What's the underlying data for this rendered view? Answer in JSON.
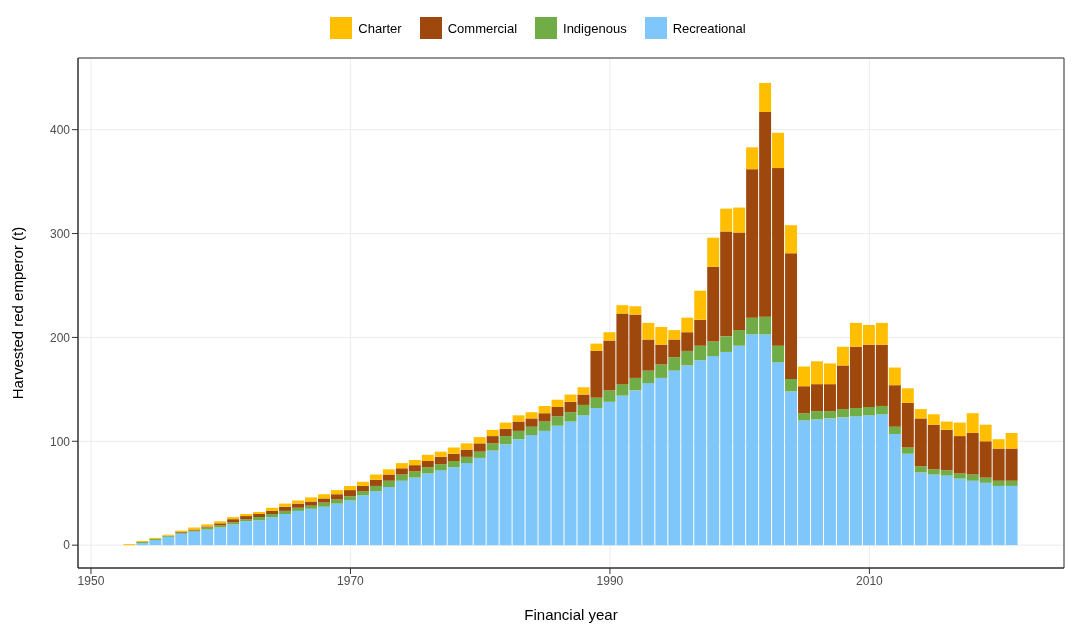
{
  "chart_data": {
    "type": "bar",
    "stacked": true,
    "xlabel": "Financial year",
    "ylabel": "Harvested red emperor (t)",
    "x": [
      1953,
      1954,
      1955,
      1956,
      1957,
      1958,
      1959,
      1960,
      1961,
      1962,
      1963,
      1964,
      1965,
      1966,
      1967,
      1968,
      1969,
      1970,
      1971,
      1972,
      1973,
      1974,
      1975,
      1976,
      1977,
      1978,
      1979,
      1980,
      1981,
      1982,
      1983,
      1984,
      1985,
      1986,
      1987,
      1988,
      1989,
      1990,
      1991,
      1992,
      1993,
      1994,
      1995,
      1996,
      1997,
      1998,
      1999,
      2000,
      2001,
      2002,
      2003,
      2004,
      2005,
      2006,
      2007,
      2008,
      2009,
      2010,
      2011,
      2012,
      2013,
      2014,
      2015,
      2016,
      2017,
      2018,
      2019,
      2020,
      2021
    ],
    "xlim": [
      1949,
      2025
    ],
    "xticks": [
      1950,
      1970,
      1990,
      2010
    ],
    "ylim": [
      -22,
      469
    ],
    "yticks": [
      0,
      100,
      200,
      300,
      400
    ],
    "grid": true,
    "legend": "top",
    "series": [
      {
        "name": "Recreational",
        "color": "#7fc7fa",
        "values": [
          0,
          2,
          5,
          8,
          11,
          13,
          15,
          17,
          20,
          23,
          24,
          27,
          30,
          33,
          35,
          37,
          40,
          43,
          48,
          52,
          56,
          62,
          65,
          69,
          72,
          75,
          79,
          84,
          91,
          97,
          102,
          106,
          110,
          115,
          119,
          125,
          132,
          138,
          144,
          149,
          156,
          161,
          168,
          173,
          178,
          182,
          186,
          192,
          203,
          203,
          176,
          148,
          120,
          121,
          122,
          123,
          124,
          125,
          126,
          107,
          88,
          70,
          68,
          67,
          64,
          62,
          60,
          57,
          57
        ]
      },
      {
        "name": "Indigenous",
        "color": "#70ad47",
        "values": [
          0,
          1,
          1,
          1,
          1,
          1,
          2,
          2,
          2,
          2,
          3,
          3,
          3,
          3,
          3,
          4,
          4,
          4,
          4,
          5,
          6,
          6,
          6,
          6,
          6,
          6,
          6,
          6,
          7,
          8,
          8,
          8,
          9,
          9,
          9,
          10,
          10,
          11,
          11,
          12,
          12,
          13,
          13,
          14,
          14,
          14,
          15,
          15,
          16,
          17,
          16,
          12,
          7,
          8,
          7,
          8,
          8,
          8,
          8,
          7,
          6,
          6,
          5,
          5,
          5,
          6,
          5,
          5,
          5
        ]
      },
      {
        "name": "Commercial",
        "color": "#9e480e",
        "values": [
          0,
          0,
          0,
          0,
          1,
          1,
          1,
          2,
          3,
          3,
          3,
          3,
          4,
          4,
          4,
          4,
          5,
          6,
          5,
          6,
          6,
          6,
          6,
          6,
          7,
          7,
          7,
          8,
          7,
          7,
          9,
          8,
          8,
          9,
          10,
          10,
          45,
          48,
          68,
          61,
          30,
          19,
          17,
          18,
          25,
          72,
          101,
          94,
          143,
          197,
          171,
          121,
          26,
          26,
          26,
          42,
          59,
          60,
          59,
          40,
          43,
          46,
          43,
          39,
          36,
          40,
          35,
          31,
          31
        ]
      },
      {
        "name": "Charter",
        "color": "#ffbf00",
        "values": [
          1,
          1,
          1,
          1,
          1,
          2,
          2,
          2,
          2,
          2,
          2,
          3,
          3,
          3,
          4,
          4,
          4,
          4,
          4,
          5,
          5,
          5,
          5,
          6,
          5,
          6,
          6,
          6,
          6,
          6,
          6,
          6,
          7,
          7,
          7,
          7,
          7,
          8,
          8,
          8,
          16,
          17,
          9,
          14,
          28,
          28,
          22,
          24,
          21,
          28,
          34,
          27,
          19,
          22,
          20,
          18,
          23,
          19,
          21,
          17,
          14,
          9,
          10,
          8,
          13,
          19,
          16,
          9,
          15
        ]
      }
    ]
  }
}
